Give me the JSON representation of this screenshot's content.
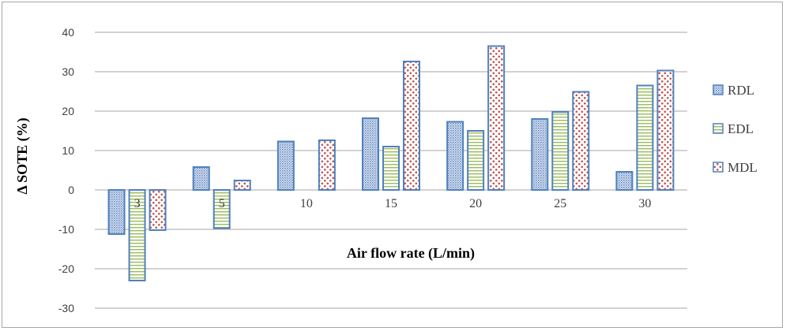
{
  "chart_data": {
    "type": "bar",
    "title": "",
    "xlabel": "Air flow rate (L/min)",
    "ylabel": "Δ SOTE (%)",
    "ylim": [
      -30,
      40
    ],
    "yticks": [
      40,
      30,
      20,
      10,
      0,
      -10,
      -20,
      -30
    ],
    "grid": true,
    "legend": "right",
    "categories": [
      "3",
      "5",
      "10",
      "15",
      "20",
      "25",
      "30"
    ],
    "series": [
      {
        "name": "RDL",
        "values": [
          -11.2,
          5.8,
          12.3,
          18.2,
          17.3,
          18.0,
          4.6
        ],
        "pattern": "dots-blue",
        "color": "#8faadc"
      },
      {
        "name": "EDL",
        "values": [
          -23.0,
          -9.7,
          0,
          11.0,
          15.0,
          19.8,
          26.5
        ],
        "pattern": "hlines-green",
        "color": "#9bbb59"
      },
      {
        "name": "MDL",
        "values": [
          -10.2,
          2.4,
          12.6,
          32.6,
          36.5,
          24.9,
          30.3
        ],
        "pattern": "dots-red",
        "color": "#c0504d"
      }
    ],
    "bar_outline": "#4f81bd",
    "grid_color": "#a6a6a6"
  }
}
